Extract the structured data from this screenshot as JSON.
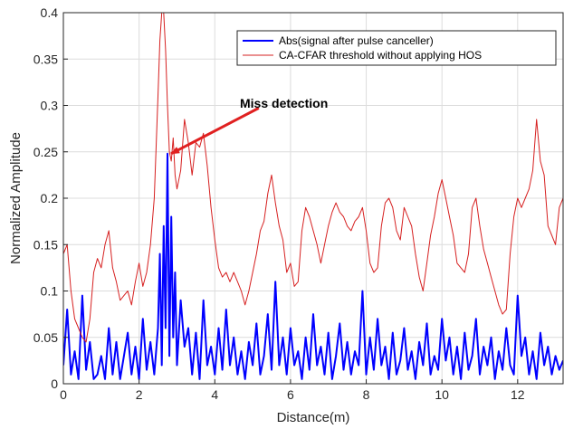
{
  "chart_data": {
    "type": "line",
    "xlabel": "Distance(m)",
    "ylabel": "Normalized Amplitude",
    "xlim": [
      0,
      13.2
    ],
    "ylim": [
      0,
      0.4
    ],
    "x_ticks": [
      0,
      2,
      4,
      6,
      8,
      10,
      12
    ],
    "x_tick_labels": [
      "0",
      "2",
      "4",
      "6",
      "8",
      "10",
      "12"
    ],
    "y_ticks": [
      0,
      0.05,
      0.1,
      0.15,
      0.2,
      0.25,
      0.3,
      0.35,
      0.4
    ],
    "y_tick_labels": [
      "0",
      "0.05",
      "0.1",
      "0.15",
      "0.2",
      "0.25",
      "0.3",
      "0.35",
      "0.4"
    ],
    "grid": true,
    "legend_position": "top-right",
    "colors": {
      "signal": "#0000ff",
      "threshold": "#d62020",
      "annotation": "#e02020",
      "grid": "#dcdcdc"
    },
    "annotation": {
      "text": "Miss detection",
      "point": [
        2.75,
        0.248
      ],
      "text_anchor": [
        5.4,
        0.305
      ]
    },
    "series": [
      {
        "name": "Abs(signal after pulse canceller)",
        "color": "#0000ff",
        "x": [
          0,
          0.1,
          0.2,
          0.3,
          0.4,
          0.5,
          0.6,
          0.7,
          0.8,
          0.9,
          1.0,
          1.1,
          1.2,
          1.3,
          1.4,
          1.5,
          1.6,
          1.7,
          1.8,
          1.9,
          2.0,
          2.1,
          2.2,
          2.3,
          2.4,
          2.5,
          2.55,
          2.6,
          2.65,
          2.7,
          2.75,
          2.8,
          2.85,
          2.9,
          2.95,
          3.0,
          3.1,
          3.2,
          3.3,
          3.4,
          3.5,
          3.6,
          3.7,
          3.8,
          3.9,
          4.0,
          4.1,
          4.2,
          4.3,
          4.4,
          4.5,
          4.6,
          4.7,
          4.8,
          4.9,
          5.0,
          5.1,
          5.2,
          5.3,
          5.4,
          5.5,
          5.6,
          5.7,
          5.8,
          5.9,
          6.0,
          6.1,
          6.2,
          6.3,
          6.4,
          6.5,
          6.6,
          6.7,
          6.8,
          6.9,
          7.0,
          7.1,
          7.2,
          7.3,
          7.4,
          7.5,
          7.6,
          7.7,
          7.8,
          7.9,
          8.0,
          8.1,
          8.2,
          8.3,
          8.4,
          8.5,
          8.6,
          8.7,
          8.8,
          8.9,
          9.0,
          9.1,
          9.2,
          9.3,
          9.4,
          9.5,
          9.6,
          9.7,
          9.8,
          9.9,
          10.0,
          10.1,
          10.2,
          10.3,
          10.4,
          10.5,
          10.6,
          10.7,
          10.8,
          10.9,
          11.0,
          11.1,
          11.2,
          11.3,
          11.4,
          11.5,
          11.6,
          11.7,
          11.8,
          11.9,
          12.0,
          12.1,
          12.2,
          12.3,
          12.4,
          12.5,
          12.6,
          12.7,
          12.8,
          12.9,
          13.0,
          13.1,
          13.2
        ],
        "values": [
          0.02,
          0.08,
          0.01,
          0.035,
          0.005,
          0.095,
          0.015,
          0.045,
          0.005,
          0.01,
          0.03,
          0.005,
          0.06,
          0.01,
          0.045,
          0.005,
          0.03,
          0.055,
          0.01,
          0.04,
          0.005,
          0.07,
          0.015,
          0.045,
          0.01,
          0.06,
          0.14,
          0.02,
          0.17,
          0.06,
          0.248,
          0.03,
          0.18,
          0.05,
          0.12,
          0.02,
          0.09,
          0.04,
          0.06,
          0.01,
          0.055,
          0.005,
          0.09,
          0.02,
          0.04,
          0.01,
          0.06,
          0.015,
          0.08,
          0.02,
          0.05,
          0.01,
          0.035,
          0.005,
          0.045,
          0.02,
          0.065,
          0.01,
          0.03,
          0.075,
          0.015,
          0.11,
          0.02,
          0.05,
          0.01,
          0.06,
          0.02,
          0.035,
          0.005,
          0.05,
          0.015,
          0.075,
          0.02,
          0.04,
          0.01,
          0.055,
          0.005,
          0.03,
          0.065,
          0.015,
          0.045,
          0.01,
          0.035,
          0.02,
          0.1,
          0.01,
          0.05,
          0.015,
          0.07,
          0.02,
          0.04,
          0.005,
          0.055,
          0.01,
          0.025,
          0.06,
          0.015,
          0.035,
          0.005,
          0.045,
          0.02,
          0.065,
          0.01,
          0.03,
          0.015,
          0.07,
          0.025,
          0.05,
          0.01,
          0.04,
          0.005,
          0.055,
          0.015,
          0.03,
          0.07,
          0.01,
          0.04,
          0.02,
          0.05,
          0.005,
          0.035,
          0.015,
          0.06,
          0.02,
          0.01,
          0.095,
          0.03,
          0.05,
          0.01,
          0.035,
          0.005,
          0.055,
          0.02,
          0.04,
          0.01,
          0.03,
          0.015,
          0.025
        ]
      },
      {
        "name": "CA-CFAR threshold without applying HOS",
        "color": "#d62020",
        "x": [
          0,
          0.1,
          0.2,
          0.3,
          0.4,
          0.5,
          0.6,
          0.7,
          0.8,
          0.9,
          1.0,
          1.1,
          1.2,
          1.3,
          1.4,
          1.5,
          1.6,
          1.7,
          1.8,
          1.9,
          2.0,
          2.1,
          2.2,
          2.3,
          2.4,
          2.5,
          2.55,
          2.6,
          2.65,
          2.7,
          2.75,
          2.8,
          2.85,
          2.9,
          2.95,
          3.0,
          3.1,
          3.2,
          3.3,
          3.4,
          3.5,
          3.6,
          3.7,
          3.8,
          3.9,
          4.0,
          4.1,
          4.2,
          4.3,
          4.4,
          4.5,
          4.6,
          4.7,
          4.8,
          4.9,
          5.0,
          5.1,
          5.2,
          5.3,
          5.4,
          5.5,
          5.6,
          5.7,
          5.8,
          5.9,
          6.0,
          6.1,
          6.2,
          6.3,
          6.4,
          6.5,
          6.6,
          6.7,
          6.8,
          6.9,
          7.0,
          7.1,
          7.2,
          7.3,
          7.4,
          7.5,
          7.6,
          7.7,
          7.8,
          7.9,
          8.0,
          8.1,
          8.2,
          8.3,
          8.4,
          8.5,
          8.6,
          8.7,
          8.8,
          8.9,
          9.0,
          9.1,
          9.2,
          9.3,
          9.4,
          9.5,
          9.6,
          9.7,
          9.8,
          9.9,
          10.0,
          10.1,
          10.2,
          10.3,
          10.4,
          10.5,
          10.6,
          10.7,
          10.8,
          10.9,
          11.0,
          11.1,
          11.2,
          11.3,
          11.4,
          11.5,
          11.6,
          11.7,
          11.8,
          11.9,
          12.0,
          12.1,
          12.2,
          12.3,
          12.4,
          12.5,
          12.6,
          12.7,
          12.8,
          12.9,
          13.0,
          13.1,
          13.2
        ],
        "values": [
          0.14,
          0.15,
          0.1,
          0.07,
          0.06,
          0.05,
          0.045,
          0.07,
          0.12,
          0.135,
          0.125,
          0.15,
          0.165,
          0.125,
          0.11,
          0.09,
          0.095,
          0.1,
          0.085,
          0.11,
          0.13,
          0.105,
          0.12,
          0.15,
          0.2,
          0.31,
          0.37,
          0.4,
          0.4,
          0.36,
          0.3,
          0.25,
          0.24,
          0.265,
          0.225,
          0.21,
          0.23,
          0.285,
          0.26,
          0.225,
          0.26,
          0.255,
          0.27,
          0.235,
          0.19,
          0.155,
          0.125,
          0.115,
          0.12,
          0.11,
          0.12,
          0.11,
          0.1,
          0.085,
          0.1,
          0.12,
          0.14,
          0.165,
          0.175,
          0.205,
          0.225,
          0.195,
          0.17,
          0.155,
          0.12,
          0.13,
          0.105,
          0.11,
          0.165,
          0.19,
          0.18,
          0.165,
          0.15,
          0.13,
          0.15,
          0.17,
          0.185,
          0.195,
          0.185,
          0.18,
          0.17,
          0.165,
          0.175,
          0.18,
          0.19,
          0.165,
          0.13,
          0.12,
          0.125,
          0.17,
          0.195,
          0.2,
          0.19,
          0.165,
          0.155,
          0.19,
          0.18,
          0.17,
          0.14,
          0.115,
          0.1,
          0.13,
          0.16,
          0.18,
          0.205,
          0.22,
          0.2,
          0.18,
          0.16,
          0.13,
          0.125,
          0.12,
          0.14,
          0.19,
          0.2,
          0.17,
          0.145,
          0.13,
          0.115,
          0.1,
          0.085,
          0.075,
          0.08,
          0.14,
          0.18,
          0.2,
          0.19,
          0.2,
          0.21,
          0.23,
          0.285,
          0.24,
          0.225,
          0.17,
          0.16,
          0.15,
          0.19,
          0.2
        ]
      }
    ]
  }
}
